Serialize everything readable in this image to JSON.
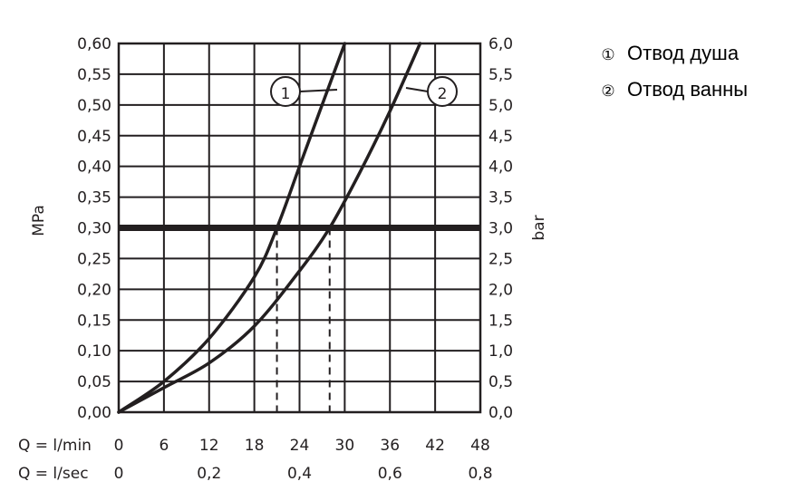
{
  "chart_data": {
    "type": "line",
    "left_axis": {
      "label": "MPa",
      "range": [
        0,
        0.6
      ],
      "ticks": [
        "0,00",
        "0,05",
        "0,10",
        "0,15",
        "0,20",
        "0,25",
        "0,30",
        "0,35",
        "0,40",
        "0,45",
        "0,50",
        "0,55",
        "0,60"
      ]
    },
    "right_axis": {
      "label": "bar",
      "range": [
        0,
        6
      ],
      "ticks": [
        "0,0",
        "0,5",
        "1,0",
        "1,5",
        "2,0",
        "2,5",
        "3,0",
        "3,5",
        "4,0",
        "4,5",
        "5,0",
        "5,5",
        "6,0"
      ]
    },
    "x_axis_lmin": {
      "prefix": "Q = l/min",
      "range": [
        0,
        48
      ],
      "ticks": [
        "0",
        "6",
        "12",
        "18",
        "24",
        "30",
        "36",
        "42",
        "48"
      ]
    },
    "x_axis_lsec": {
      "prefix": "Q = l/sec",
      "ticks": [
        {
          "value": 0,
          "label": "0"
        },
        {
          "value": 0.2,
          "label": "0,2"
        },
        {
          "value": 0.4,
          "label": "0,4"
        },
        {
          "value": 0.6,
          "label": "0,6"
        },
        {
          "value": 0.8,
          "label": "0,8"
        }
      ]
    },
    "grid": true,
    "reference_line": {
      "y": 0.3
    },
    "series": [
      {
        "name": "1",
        "x": [
          0,
          6,
          12,
          18,
          21,
          24,
          27,
          30
        ],
        "y": [
          0,
          0.05,
          0.12,
          0.22,
          0.3,
          0.4,
          0.5,
          0.6
        ]
      },
      {
        "name": "2",
        "x": [
          0,
          6,
          12,
          18,
          24,
          28,
          32,
          36,
          40
        ],
        "y": [
          0,
          0.04,
          0.08,
          0.14,
          0.23,
          0.3,
          0.39,
          0.49,
          0.6
        ]
      }
    ],
    "drop_lines": [
      {
        "x": 21,
        "y": 0.3
      },
      {
        "x": 28,
        "y": 0.3
      }
    ]
  },
  "legend": [
    {
      "marker": "①",
      "label": "Отвод душа"
    },
    {
      "marker": "②",
      "label": "Отвод ванны"
    }
  ]
}
